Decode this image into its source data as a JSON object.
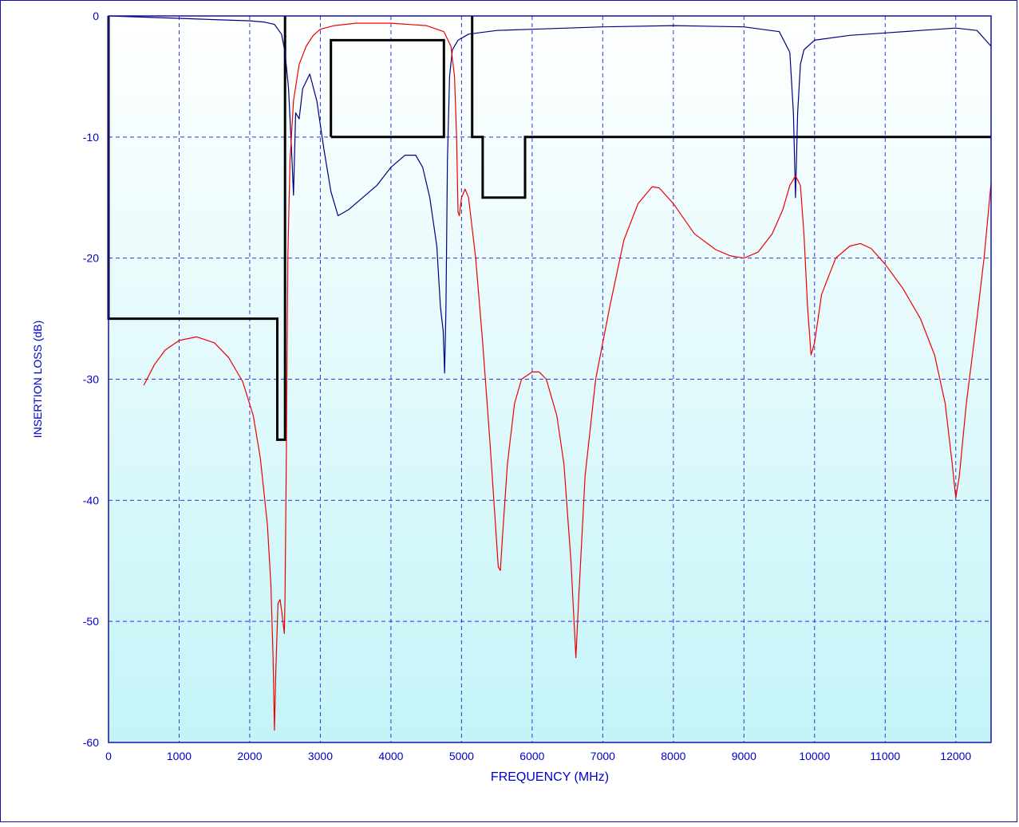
{
  "chart_data": {
    "type": "line",
    "xlabel": "FREQUENCY (MHz)",
    "ylabel": "INSERTION LOSS (dB)",
    "xlim": [
      0,
      12500
    ],
    "ylim": [
      -60,
      0
    ],
    "xticks": [
      0,
      1000,
      2000,
      3000,
      4000,
      5000,
      6000,
      7000,
      8000,
      9000,
      10000,
      11000,
      12000
    ],
    "yticks": [
      0,
      -10,
      -20,
      -30,
      -40,
      -50,
      -60
    ],
    "grid": true,
    "legend": "none",
    "colors": {
      "axis_text": "#0000cc",
      "grid": "#3333dd",
      "plot_top": "#ffffff",
      "plot_bottom": "#c4f4f8",
      "frame": "#1010b0"
    },
    "series": [
      {
        "color": "#000080",
        "points": [
          [
            0,
            0
          ],
          [
            500,
            -0.1
          ],
          [
            1000,
            -0.2
          ],
          [
            1500,
            -0.3
          ],
          [
            2000,
            -0.4
          ],
          [
            2200,
            -0.5
          ],
          [
            2350,
            -0.7
          ],
          [
            2450,
            -1.5
          ],
          [
            2500,
            -3
          ],
          [
            2550,
            -6
          ],
          [
            2600,
            -12
          ],
          [
            2620,
            -14.8
          ],
          [
            2650,
            -8
          ],
          [
            2700,
            -8.5
          ],
          [
            2750,
            -6
          ],
          [
            2850,
            -4.8
          ],
          [
            2950,
            -7
          ],
          [
            3050,
            -11
          ],
          [
            3150,
            -14.5
          ],
          [
            3250,
            -16.5
          ],
          [
            3400,
            -16
          ],
          [
            3600,
            -15
          ],
          [
            3800,
            -14
          ],
          [
            4000,
            -12.5
          ],
          [
            4200,
            -11.5
          ],
          [
            4350,
            -11.5
          ],
          [
            4450,
            -12.5
          ],
          [
            4550,
            -15
          ],
          [
            4650,
            -19
          ],
          [
            4700,
            -24
          ],
          [
            4720,
            -25
          ],
          [
            4740,
            -26
          ],
          [
            4760,
            -29.5
          ],
          [
            4780,
            -24
          ],
          [
            4800,
            -12
          ],
          [
            4830,
            -5
          ],
          [
            4870,
            -2.8
          ],
          [
            4950,
            -2
          ],
          [
            5100,
            -1.5
          ],
          [
            5500,
            -1.2
          ],
          [
            6000,
            -1.1
          ],
          [
            7000,
            -0.9
          ],
          [
            8000,
            -0.8
          ],
          [
            9000,
            -0.9
          ],
          [
            9500,
            -1.3
          ],
          [
            9650,
            -3
          ],
          [
            9700,
            -8
          ],
          [
            9730,
            -15
          ],
          [
            9760,
            -8
          ],
          [
            9800,
            -4
          ],
          [
            9850,
            -2.8
          ],
          [
            10000,
            -2
          ],
          [
            10500,
            -1.6
          ],
          [
            11000,
            -1.4
          ],
          [
            11500,
            -1.2
          ],
          [
            12000,
            -1
          ],
          [
            12300,
            -1.2
          ],
          [
            12500,
            -2.5
          ]
        ]
      },
      {
        "color": "#ee0000",
        "points": [
          [
            500,
            -30.5
          ],
          [
            650,
            -28.8
          ],
          [
            800,
            -27.6
          ],
          [
            1000,
            -26.8
          ],
          [
            1250,
            -26.5
          ],
          [
            1500,
            -27
          ],
          [
            1700,
            -28.2
          ],
          [
            1900,
            -30.2
          ],
          [
            2050,
            -33
          ],
          [
            2150,
            -36.5
          ],
          [
            2250,
            -42
          ],
          [
            2300,
            -47
          ],
          [
            2330,
            -53
          ],
          [
            2350,
            -59
          ],
          [
            2370,
            -54
          ],
          [
            2400,
            -48.5
          ],
          [
            2430,
            -48.2
          ],
          [
            2460,
            -49.5
          ],
          [
            2490,
            -51
          ],
          [
            2500,
            -48
          ],
          [
            2520,
            -35
          ],
          [
            2540,
            -20
          ],
          [
            2570,
            -12
          ],
          [
            2620,
            -7
          ],
          [
            2700,
            -4
          ],
          [
            2800,
            -2.5
          ],
          [
            2900,
            -1.6
          ],
          [
            3000,
            -1.1
          ],
          [
            3200,
            -0.8
          ],
          [
            3500,
            -0.6
          ],
          [
            4000,
            -0.6
          ],
          [
            4500,
            -0.8
          ],
          [
            4750,
            -1.3
          ],
          [
            4850,
            -2.5
          ],
          [
            4900,
            -5
          ],
          [
            4930,
            -10
          ],
          [
            4950,
            -16.2
          ],
          [
            4970,
            -16.5
          ],
          [
            5000,
            -15
          ],
          [
            5050,
            -14.3
          ],
          [
            5100,
            -15
          ],
          [
            5200,
            -20
          ],
          [
            5300,
            -27
          ],
          [
            5400,
            -35
          ],
          [
            5480,
            -42
          ],
          [
            5520,
            -45.5
          ],
          [
            5550,
            -45.8
          ],
          [
            5580,
            -43
          ],
          [
            5650,
            -37
          ],
          [
            5750,
            -32
          ],
          [
            5850,
            -30
          ],
          [
            6000,
            -29.4
          ],
          [
            6100,
            -29.4
          ],
          [
            6200,
            -30
          ],
          [
            6350,
            -33
          ],
          [
            6450,
            -37
          ],
          [
            6550,
            -45
          ],
          [
            6620,
            -53
          ],
          [
            6660,
            -48
          ],
          [
            6750,
            -38
          ],
          [
            6900,
            -30
          ],
          [
            7100,
            -24
          ],
          [
            7300,
            -18.5
          ],
          [
            7500,
            -15.5
          ],
          [
            7700,
            -14.1
          ],
          [
            7800,
            -14.2
          ],
          [
            8000,
            -15.5
          ],
          [
            8300,
            -18
          ],
          [
            8600,
            -19.3
          ],
          [
            8800,
            -19.8
          ],
          [
            9000,
            -20
          ],
          [
            9200,
            -19.5
          ],
          [
            9400,
            -18
          ],
          [
            9550,
            -16
          ],
          [
            9650,
            -14
          ],
          [
            9730,
            -13.2
          ],
          [
            9800,
            -14
          ],
          [
            9850,
            -18
          ],
          [
            9900,
            -24
          ],
          [
            9950,
            -28
          ],
          [
            10000,
            -27
          ],
          [
            10100,
            -23
          ],
          [
            10300,
            -20
          ],
          [
            10500,
            -19
          ],
          [
            10650,
            -18.8
          ],
          [
            10800,
            -19.2
          ],
          [
            11000,
            -20.5
          ],
          [
            11250,
            -22.5
          ],
          [
            11500,
            -25
          ],
          [
            11700,
            -28
          ],
          [
            11850,
            -32
          ],
          [
            11950,
            -37
          ],
          [
            12000,
            -39.8
          ],
          [
            12050,
            -38
          ],
          [
            12150,
            -32
          ],
          [
            12300,
            -25
          ],
          [
            12400,
            -20
          ],
          [
            12500,
            -13.8
          ]
        ]
      }
    ],
    "mask_lines": {
      "color": "#000000",
      "paths": [
        [
          [
            0,
            0
          ],
          [
            0,
            -25
          ],
          [
            2390,
            -25
          ],
          [
            2390,
            -35
          ],
          [
            2500,
            -35
          ],
          [
            2500,
            0
          ]
        ],
        [
          [
            3150,
            -10
          ],
          [
            3150,
            -2
          ],
          [
            4750,
            -2
          ],
          [
            4750,
            -10
          ],
          [
            3150,
            -10
          ]
        ],
        [
          [
            5150,
            0
          ],
          [
            5150,
            -10
          ],
          [
            5300,
            -10
          ],
          [
            5300,
            -15
          ],
          [
            5900,
            -15
          ],
          [
            5900,
            -10
          ],
          [
            12500,
            -10
          ]
        ]
      ]
    }
  }
}
